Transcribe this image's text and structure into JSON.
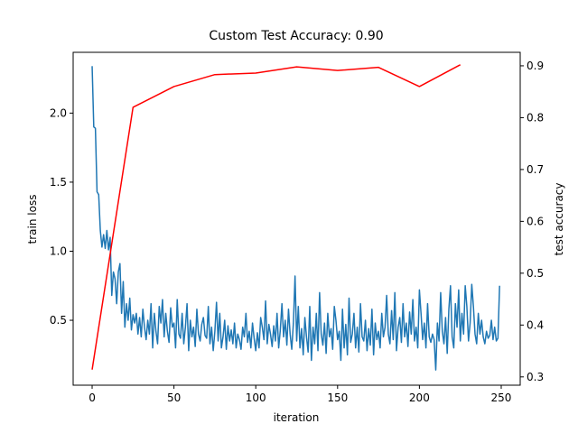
{
  "chart_data": {
    "type": "line",
    "title": "Custom Test Accuracy: 0.90",
    "xlabel": "iteration",
    "ylabel": "train loss",
    "y2label": "test accuracy",
    "xlim": [
      -11.6,
      261.6
    ],
    "xticks": [
      0,
      50,
      100,
      150,
      200,
      250
    ],
    "ylim": [
      0.03,
      2.44
    ],
    "yticks": [
      0.5,
      {
        "value": 1,
        "label": "1.0"
      },
      1.5,
      {
        "value": 2,
        "label": "2.0"
      }
    ],
    "y2lim": [
      0.284,
      0.926
    ],
    "y2ticks": [
      0.3,
      0.4,
      0.5,
      0.6,
      0.7,
      0.8,
      0.9
    ],
    "series": [
      {
        "color": "#1f77b4",
        "x": [
          0,
          1,
          2,
          3,
          4,
          5,
          6,
          7,
          8,
          9,
          10,
          11,
          12,
          13,
          14,
          15,
          16,
          17,
          18,
          19,
          20,
          21,
          22,
          23,
          24,
          25,
          26,
          27,
          28,
          29,
          30,
          31,
          32,
          33,
          34,
          35,
          36,
          37,
          38,
          39,
          40,
          41,
          42,
          43,
          44,
          45,
          46,
          47,
          48,
          49,
          50,
          51,
          52,
          53,
          54,
          55,
          56,
          57,
          58,
          59,
          60,
          61,
          62,
          63,
          64,
          65,
          66,
          67,
          68,
          69,
          70,
          71,
          72,
          73,
          74,
          75,
          76,
          77,
          78,
          79,
          80,
          81,
          82,
          83,
          84,
          85,
          86,
          87,
          88,
          89,
          90,
          91,
          92,
          93,
          94,
          95,
          96,
          97,
          98,
          99,
          100,
          101,
          102,
          103,
          104,
          105,
          106,
          107,
          108,
          109,
          110,
          111,
          112,
          113,
          114,
          115,
          116,
          117,
          118,
          119,
          120,
          121,
          122,
          123,
          124,
          125,
          126,
          127,
          128,
          129,
          130,
          131,
          132,
          133,
          134,
          135,
          136,
          137,
          138,
          139,
          140,
          141,
          142,
          143,
          144,
          145,
          146,
          147,
          148,
          149,
          150,
          151,
          152,
          153,
          154,
          155,
          156,
          157,
          158,
          159,
          160,
          161,
          162,
          163,
          164,
          165,
          166,
          167,
          168,
          169,
          170,
          171,
          172,
          173,
          174,
          175,
          176,
          177,
          178,
          179,
          180,
          181,
          182,
          183,
          184,
          185,
          186,
          187,
          188,
          189,
          190,
          191,
          192,
          193,
          194,
          195,
          196,
          197,
          198,
          199,
          200,
          201,
          202,
          203,
          204,
          205,
          206,
          207,
          208,
          209,
          210,
          211,
          212,
          213,
          214,
          215,
          216,
          217,
          218,
          219,
          220,
          221,
          222,
          223,
          224,
          225,
          226,
          227,
          228,
          229,
          230,
          231,
          232,
          233,
          234,
          235,
          236,
          237,
          238,
          239,
          240,
          241,
          242,
          243,
          244,
          245,
          246,
          247,
          248,
          249
        ],
        "values": [
          2.34,
          1.9,
          1.89,
          1.43,
          1.41,
          1.15,
          1.03,
          1.12,
          1.02,
          1.15,
          1.01,
          1.1,
          0.68,
          0.85,
          0.8,
          0.62,
          0.85,
          0.91,
          0.55,
          0.78,
          0.45,
          0.62,
          0.5,
          0.66,
          0.43,
          0.54,
          0.48,
          0.55,
          0.4,
          0.52,
          0.38,
          0.58,
          0.45,
          0.36,
          0.5,
          0.4,
          0.62,
          0.3,
          0.55,
          0.42,
          0.33,
          0.6,
          0.48,
          0.65,
          0.38,
          0.55,
          0.42,
          0.34,
          0.59,
          0.45,
          0.48,
          0.3,
          0.65,
          0.4,
          0.37,
          0.55,
          0.33,
          0.45,
          0.62,
          0.28,
          0.5,
          0.38,
          0.45,
          0.31,
          0.58,
          0.4,
          0.35,
          0.47,
          0.52,
          0.39,
          0.37,
          0.6,
          0.33,
          0.45,
          0.28,
          0.42,
          0.63,
          0.35,
          0.55,
          0.3,
          0.38,
          0.5,
          0.29,
          0.46,
          0.35,
          0.43,
          0.33,
          0.48,
          0.3,
          0.4,
          0.36,
          0.29,
          0.45,
          0.38,
          0.55,
          0.34,
          0.42,
          0.3,
          0.48,
          0.37,
          0.28,
          0.41,
          0.3,
          0.52,
          0.45,
          0.36,
          0.64,
          0.33,
          0.47,
          0.4,
          0.31,
          0.46,
          0.35,
          0.55,
          0.3,
          0.43,
          0.62,
          0.38,
          0.5,
          0.32,
          0.58,
          0.4,
          0.29,
          0.48,
          0.82,
          0.35,
          0.6,
          0.3,
          0.44,
          0.25,
          0.52,
          0.38,
          0.27,
          0.6,
          0.21,
          0.45,
          0.33,
          0.55,
          0.28,
          0.7,
          0.4,
          0.32,
          0.48,
          0.26,
          0.55,
          0.38,
          0.44,
          0.29,
          0.6,
          0.5,
          0.36,
          0.42,
          0.21,
          0.58,
          0.3,
          0.47,
          0.25,
          0.66,
          0.34,
          0.4,
          0.55,
          0.3,
          0.45,
          0.27,
          0.62,
          0.38,
          0.35,
          0.5,
          0.28,
          0.44,
          0.32,
          0.58,
          0.25,
          0.48,
          0.36,
          0.42,
          0.3,
          0.55,
          0.38,
          0.45,
          0.68,
          0.4,
          0.33,
          0.57,
          0.36,
          0.7,
          0.28,
          0.45,
          0.52,
          0.34,
          0.62,
          0.38,
          0.48,
          0.31,
          0.56,
          0.4,
          0.65,
          0.35,
          0.45,
          0.3,
          0.72,
          0.55,
          0.36,
          0.48,
          0.3,
          0.62,
          0.38,
          0.34,
          0.4,
          0.36,
          0.14,
          0.48,
          0.35,
          0.7,
          0.42,
          0.33,
          0.52,
          0.26,
          0.58,
          0.75,
          0.38,
          0.3,
          0.62,
          0.45,
          0.72,
          0.35,
          0.55,
          0.4,
          0.75,
          0.6,
          0.35,
          0.48,
          0.76,
          0.6,
          0.4,
          0.33,
          0.55,
          0.4,
          0.5,
          0.38,
          0.33,
          0.42,
          0.37,
          0.39,
          0.5,
          0.36,
          0.45,
          0.35,
          0.37,
          0.75
        ]
      },
      {
        "color": "#ff0000",
        "axis": "y2",
        "x": [
          0,
          25,
          50,
          75,
          100,
          125,
          150,
          175,
          200,
          225
        ],
        "values": [
          0.314,
          0.82,
          0.86,
          0.883,
          0.886,
          0.898,
          0.891,
          0.897,
          0.86,
          0.902
        ]
      }
    ]
  }
}
